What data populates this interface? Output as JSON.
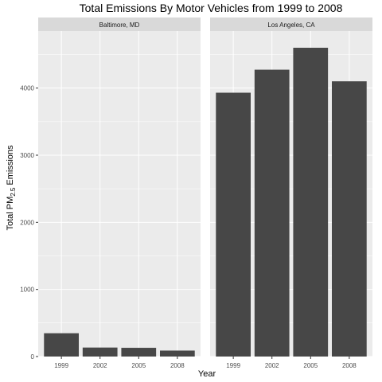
{
  "chart_data": {
    "type": "bar",
    "title": "Total Emissions By Motor Vehicles from 1999 to 2008",
    "xlabel": "Year",
    "ylabel": {
      "prefix": "Total PM",
      "subscript": "2.5",
      "suffix": " Emissions"
    },
    "categories": [
      "1999",
      "2002",
      "2005",
      "2008"
    ],
    "ylim": [
      0,
      4850
    ],
    "yticks": [
      0,
      1000,
      2000,
      3000,
      4000
    ],
    "grid": true,
    "panels": [
      {
        "name": "Baltimore, MD",
        "values": [
          347,
          134,
          130,
          89
        ]
      },
      {
        "name": "Los Angeles, CA",
        "values": [
          3931,
          4274,
          4601,
          4101
        ]
      }
    ],
    "colors": {
      "bar": "#474747",
      "panel_bg": "#ebebeb",
      "grid_major": "#ffffff",
      "strip_bg": "#d9d9d9",
      "tick": "#333333"
    }
  }
}
